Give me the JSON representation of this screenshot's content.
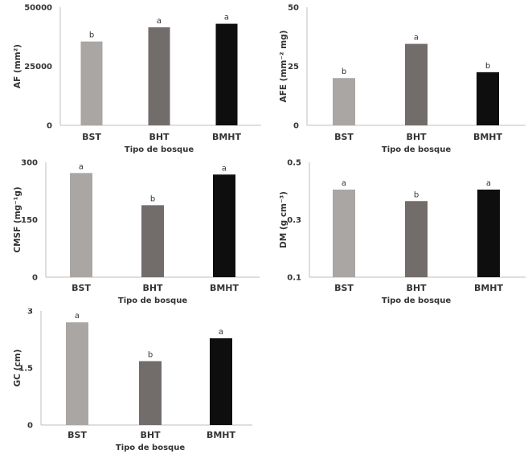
{
  "colors": {
    "BST": "#a9a6a4",
    "BHT": "#726d6b",
    "BMHT": "#0e0e0e",
    "axis": "#bfbfbf",
    "text": "#333333"
  },
  "chart_data": [
    {
      "type": "bar",
      "categories": [
        "BST",
        "BHT",
        "BMHT"
      ],
      "values": [
        35500,
        41500,
        43000
      ],
      "labels": [
        "b",
        "a",
        "a"
      ],
      "xlabel": "Tipo de bosque",
      "ylabel": "AF (mm²)",
      "ylim": [
        0,
        50000
      ],
      "yticks": [
        0,
        25000,
        50000
      ],
      "yticklabels": [
        "0",
        "25000",
        "50000"
      ],
      "grid": false
    },
    {
      "type": "bar",
      "categories": [
        "BST",
        "BHT",
        "BMHT"
      ],
      "values": [
        20,
        34.5,
        22.5
      ],
      "labels": [
        "b",
        "a",
        "b"
      ],
      "xlabel": "Tipo de bosque",
      "ylabel": "AFE (mm⁻² mg)",
      "ylim": [
        0,
        50
      ],
      "yticks": [
        0,
        25,
        50
      ],
      "yticklabels": [
        "0",
        "25",
        "50"
      ],
      "grid": false
    },
    {
      "type": "bar",
      "categories": [
        "BST",
        "BHT",
        "BMHT"
      ],
      "values": [
        272,
        188,
        268
      ],
      "labels": [
        "a",
        "b",
        "a"
      ],
      "xlabel": "Tipo de bosque",
      "ylabel": "CMSF (mg⁻¹g)",
      "ylim": [
        0,
        300
      ],
      "yticks": [
        0,
        150,
        300
      ],
      "yticklabels": [
        "0",
        "150",
        "300"
      ],
      "grid": false
    },
    {
      "type": "bar",
      "categories": [
        "BST",
        "BHT",
        "BMHT"
      ],
      "values": [
        0.405,
        0.365,
        0.405
      ],
      "labels": [
        "a",
        "b",
        "a"
      ],
      "xlabel": "Tipo de bosque",
      "ylabel": "DM (g cm⁻³)",
      "ylim": [
        0.1,
        0.5
      ],
      "yticks": [
        0.1,
        0.3,
        0.5
      ],
      "yticklabels": [
        "0.1",
        "0.3",
        "0.5"
      ],
      "grid": false
    },
    {
      "type": "bar",
      "categories": [
        "BST",
        "BHT",
        "BMHT"
      ],
      "values": [
        2.7,
        1.68,
        2.28
      ],
      "labels": [
        "a",
        "b",
        "a"
      ],
      "xlabel": "Tipo de bosque",
      "ylabel": "GC (cm)",
      "ylim": [
        0,
        3
      ],
      "yticks": [
        0,
        1.5,
        3
      ],
      "yticklabels": [
        "0",
        "1.5",
        "3"
      ],
      "grid": false
    }
  ]
}
